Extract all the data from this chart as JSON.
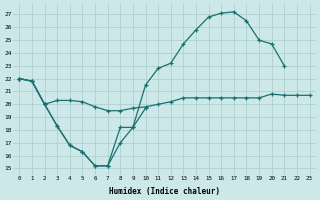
{
  "xlabel": "Humidex (Indice chaleur)",
  "bg_color": "#cce8e8",
  "grid_color": "#aacccc",
  "line_color": "#1a7070",
  "xlim": [
    -0.5,
    23.5
  ],
  "ylim": [
    14.5,
    27.8
  ],
  "yticks": [
    15,
    16,
    17,
    18,
    19,
    20,
    21,
    22,
    23,
    24,
    25,
    26,
    27
  ],
  "xticks": [
    0,
    1,
    2,
    3,
    4,
    5,
    6,
    7,
    8,
    9,
    10,
    11,
    12,
    13,
    14,
    15,
    16,
    17,
    18,
    19,
    20,
    21,
    22,
    23
  ],
  "curve1_x": [
    0,
    1,
    2,
    3,
    4,
    5,
    6,
    7,
    8,
    9,
    10
  ],
  "curve1_y": [
    22.0,
    21.8,
    20.0,
    18.3,
    16.8,
    16.3,
    15.2,
    15.2,
    17.0,
    18.2,
    19.7
  ],
  "curve2_x": [
    0,
    1,
    2,
    3,
    4,
    5,
    6,
    7,
    8,
    9,
    10,
    11,
    12,
    13,
    14,
    15,
    16,
    17,
    18,
    19,
    20,
    21,
    22,
    23
  ],
  "curve2_y": [
    22.0,
    21.8,
    20.0,
    20.3,
    20.3,
    20.2,
    19.8,
    19.5,
    19.5,
    19.7,
    19.8,
    20.0,
    20.2,
    20.5,
    20.5,
    20.5,
    20.5,
    20.5,
    20.5,
    20.5,
    20.8,
    20.7,
    20.7,
    20.7
  ],
  "curve3_x": [
    0,
    1,
    2,
    3,
    4,
    5,
    6,
    7,
    8,
    9,
    10,
    11,
    12,
    13,
    14,
    15,
    16,
    17,
    18,
    19,
    20,
    21,
    22,
    23
  ],
  "curve3_y": [
    22.0,
    21.8,
    20.0,
    18.3,
    16.8,
    16.3,
    15.2,
    15.2,
    18.2,
    18.2,
    21.5,
    22.8,
    23.2,
    24.7,
    25.8,
    26.8,
    27.1,
    27.2,
    26.5,
    25.0,
    24.7,
    23.0,
    null,
    null
  ]
}
